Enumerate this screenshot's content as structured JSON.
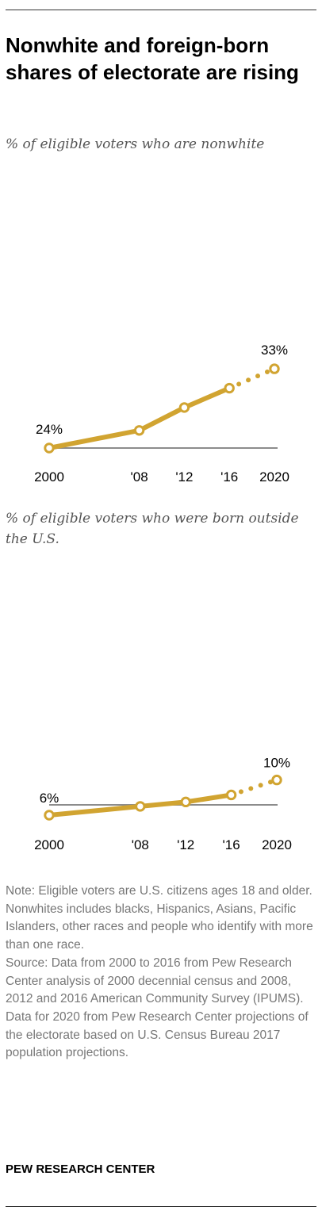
{
  "title": "Nonwhite and foreign-born shares of electorate are rising",
  "colors": {
    "line": "#d1a431",
    "axis": "#8c8c8c",
    "text": "#000000",
    "note": "#777777"
  },
  "chart_data": [
    {
      "type": "line",
      "subtitle": "% of eligible voters who are nonwhite",
      "x": [
        2000,
        2008,
        2012,
        2016,
        2020
      ],
      "y": [
        24,
        26,
        28.6,
        30.8,
        33
      ],
      "projected_from": 2016,
      "data_labels": [
        "24%",
        "",
        "",
        "",
        "33%"
      ],
      "x_tick_labels": [
        "2000",
        "'08",
        "'12",
        "'16",
        "2020"
      ],
      "xlim": [
        2000,
        2020
      ],
      "ylim": [
        0,
        33
      ]
    },
    {
      "type": "line",
      "subtitle": "% of eligible voters who were born outside the U.S.",
      "x": [
        2000,
        2008,
        2012,
        2016,
        2020
      ],
      "y": [
        6,
        7,
        7.5,
        8.3,
        10
      ],
      "projected_from": 2016,
      "data_labels": [
        "6%",
        "",
        "",
        "",
        "10%"
      ],
      "x_tick_labels": [
        "2000",
        "'08",
        "'12",
        "'16",
        "2020"
      ],
      "xlim": [
        2000,
        2020
      ],
      "ylim": [
        0,
        33
      ]
    }
  ],
  "notes": {
    "note": "Note: Eligible voters are U.S. citizens ages 18 and older. Nonwhites includes blacks, Hispanics, Asians, Pacific Islanders, other races and people who identify with more than one race.",
    "source": "Source: Data from 2000 to 2016 from Pew Research Center analysis of 2000 decennial census and 2008, 2012 and 2016 American Community Survey (IPUMS). Data for 2020 from Pew Research Center projections of the electorate based on U.S. Census Bureau 2017 population projections."
  },
  "credit": "PEW RESEARCH CENTER"
}
